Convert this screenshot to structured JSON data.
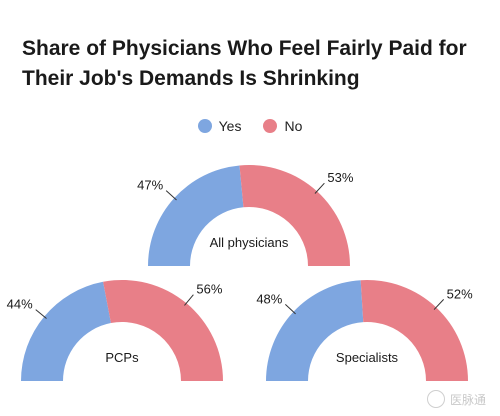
{
  "title": "Share of Physicians Who Feel Fairly Paid for Their Job's Demands Is Shrinking",
  "legend": [
    {
      "label": "Yes",
      "color": "#7ea6e0"
    },
    {
      "label": "No",
      "color": "#e87f88"
    }
  ],
  "watermark": "医脉通",
  "chart_data": [
    {
      "type": "pie",
      "style": "semi-donut",
      "center_label": "All physicians",
      "categories": [
        "Yes",
        "No"
      ],
      "values": [
        47,
        53
      ],
      "labels": [
        "47%",
        "53%"
      ]
    },
    {
      "type": "pie",
      "style": "semi-donut",
      "center_label": "PCPs",
      "categories": [
        "Yes",
        "No"
      ],
      "values": [
        44,
        56
      ],
      "labels": [
        "44%",
        "56%"
      ]
    },
    {
      "type": "pie",
      "style": "semi-donut",
      "center_label": "Specialists",
      "categories": [
        "Yes",
        "No"
      ],
      "values": [
        48,
        52
      ],
      "labels": [
        "48%",
        "52%"
      ]
    }
  ]
}
